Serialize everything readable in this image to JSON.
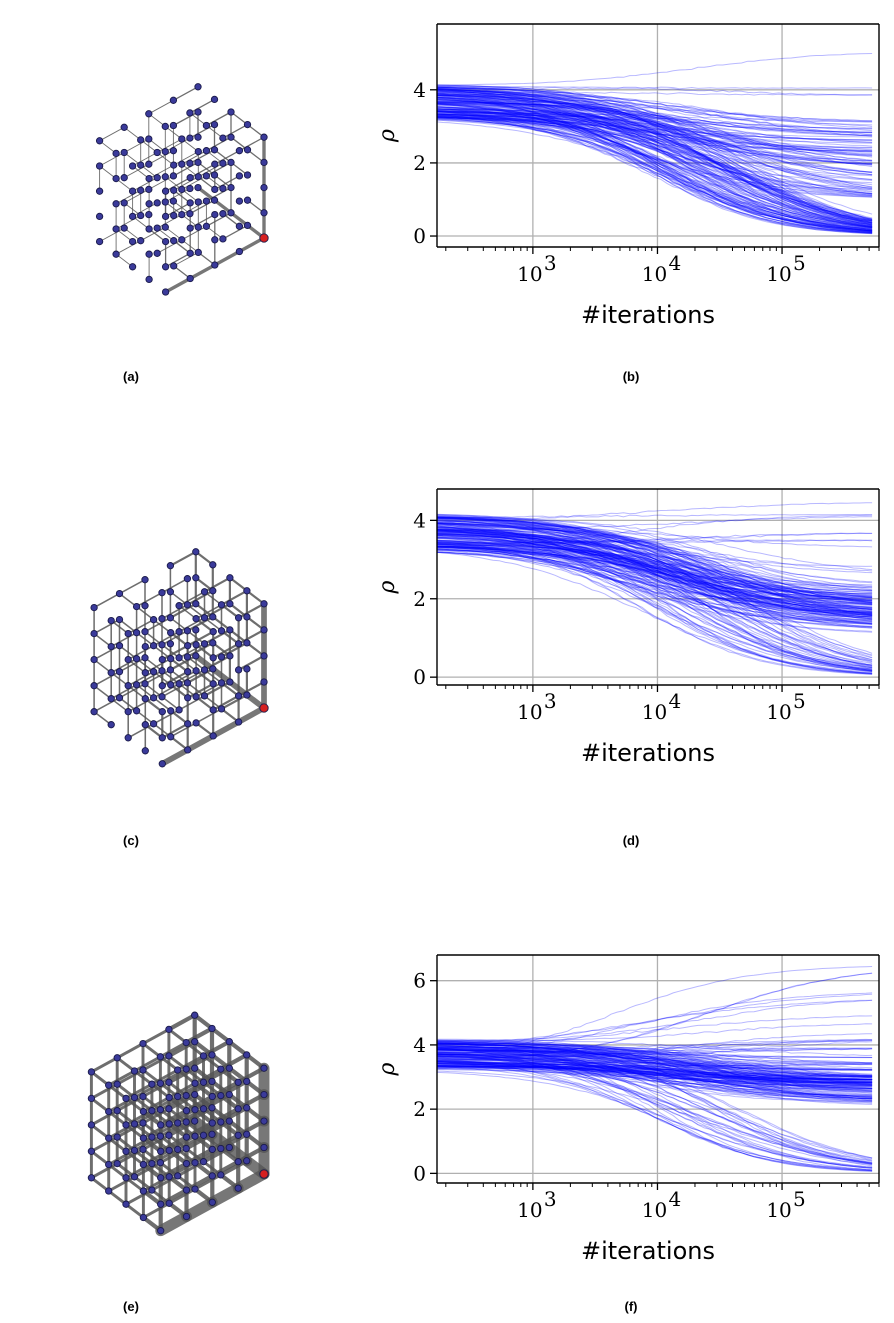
{
  "figure": {
    "captions": [
      "(a)",
      "(b)",
      "(c)",
      "(d)",
      "(e)",
      "(f)"
    ]
  },
  "colors": {
    "series": "#0000ff",
    "edge": "#555555",
    "node_fill": "#3a3a9a",
    "node_stroke": "#1a1a4a",
    "root_node": "#d62020",
    "grid": "#b0b0b0"
  },
  "chart_data": [
    {
      "panel": "(b)",
      "type": "line",
      "xscale": "log",
      "xlabel": "#iterations",
      "ylabel": "ρ",
      "xlim": [
        170,
        600000
      ],
      "ylim": [
        -0.3,
        5.8
      ],
      "xticks": [
        1000,
        10000,
        100000
      ],
      "xtick_labels": [
        {
          "base": "10",
          "exp": "3"
        },
        {
          "base": "10",
          "exp": "4"
        },
        {
          "base": "10",
          "exp": "5"
        }
      ],
      "yticks": [
        0,
        2,
        4
      ],
      "ytick_labels": [
        "0",
        "2",
        "4"
      ],
      "grid": true,
      "legend": "none",
      "initial_range": [
        3.25,
        4.2
      ],
      "final_values": [
        5.5,
        5.05,
        4.05,
        3.85,
        3.1,
        3.0,
        2.9,
        2.8,
        2.7,
        2.6,
        2.5,
        2.4,
        2.3,
        2.2,
        2.1,
        2.0,
        1.9,
        1.8,
        1.6,
        1.5,
        1.4,
        1.25,
        1.0,
        0.0
      ],
      "final_value_weights": [
        1,
        1,
        1,
        1,
        2,
        2,
        2,
        2,
        2,
        2,
        2,
        2,
        2,
        2,
        2,
        2,
        2,
        2,
        3,
        3,
        3,
        4,
        8,
        50
      ]
    },
    {
      "panel": "(d)",
      "type": "line",
      "xscale": "log",
      "xlabel": "#iterations",
      "ylabel": "ρ",
      "xlim": [
        170,
        600000
      ],
      "ylim": [
        -0.2,
        4.8
      ],
      "xticks": [
        1000,
        10000,
        100000
      ],
      "xtick_labels": [
        {
          "base": "10",
          "exp": "3"
        },
        {
          "base": "10",
          "exp": "4"
        },
        {
          "base": "10",
          "exp": "5"
        }
      ],
      "yticks": [
        0,
        2,
        4
      ],
      "ytick_labels": [
        "0",
        "2",
        "4"
      ],
      "grid": true,
      "legend": "none",
      "initial_range": [
        3.25,
        4.2
      ],
      "final_values": [
        4.5,
        4.35,
        4.15,
        3.85,
        3.7,
        3.5,
        3.3,
        3.0,
        2.8,
        2.6,
        2.3,
        2.2,
        2.1,
        2.0,
        1.9,
        1.8,
        1.7,
        1.6,
        1.5,
        1.4,
        1.3,
        1.2,
        1.1,
        0.0
      ],
      "final_value_weights": [
        1,
        1,
        1,
        1,
        1,
        1,
        1,
        1,
        1,
        2,
        3,
        4,
        5,
        6,
        7,
        8,
        9,
        10,
        10,
        9,
        8,
        6,
        4,
        30
      ]
    },
    {
      "panel": "(f)",
      "type": "line",
      "xscale": "log",
      "xlabel": "#iterations",
      "ylabel": "ρ",
      "xlim": [
        170,
        600000
      ],
      "ylim": [
        -0.3,
        6.8
      ],
      "xticks": [
        1000,
        10000,
        100000
      ],
      "xtick_labels": [
        {
          "base": "10",
          "exp": "3"
        },
        {
          "base": "10",
          "exp": "4"
        },
        {
          "base": "10",
          "exp": "5"
        }
      ],
      "yticks": [
        0,
        2,
        4,
        6
      ],
      "ytick_labels": [
        "0",
        "2",
        "4",
        "6"
      ],
      "grid": true,
      "legend": "none",
      "initial_range": [
        3.25,
        4.2
      ],
      "final_values": [
        6.5,
        5.7,
        5.5,
        5.0,
        4.7,
        4.4,
        4.2,
        3.9,
        3.6,
        3.4,
        3.2,
        3.0,
        2.9,
        2.8,
        2.7,
        2.6,
        2.5,
        2.4,
        2.3,
        2.2,
        2.1,
        0.0
      ],
      "final_value_weights": [
        1,
        1,
        1,
        1,
        1,
        2,
        2,
        2,
        3,
        5,
        7,
        9,
        10,
        10,
        10,
        10,
        9,
        8,
        7,
        5,
        4,
        20
      ]
    }
  ],
  "graph_panels": [
    {
      "panel": "(a)",
      "density": 0.5,
      "thickness": 1.3
    },
    {
      "panel": "(c)",
      "density": 0.72,
      "thickness": 2.2
    },
    {
      "panel": "(e)",
      "density": 1.0,
      "thickness": 4.2
    }
  ]
}
